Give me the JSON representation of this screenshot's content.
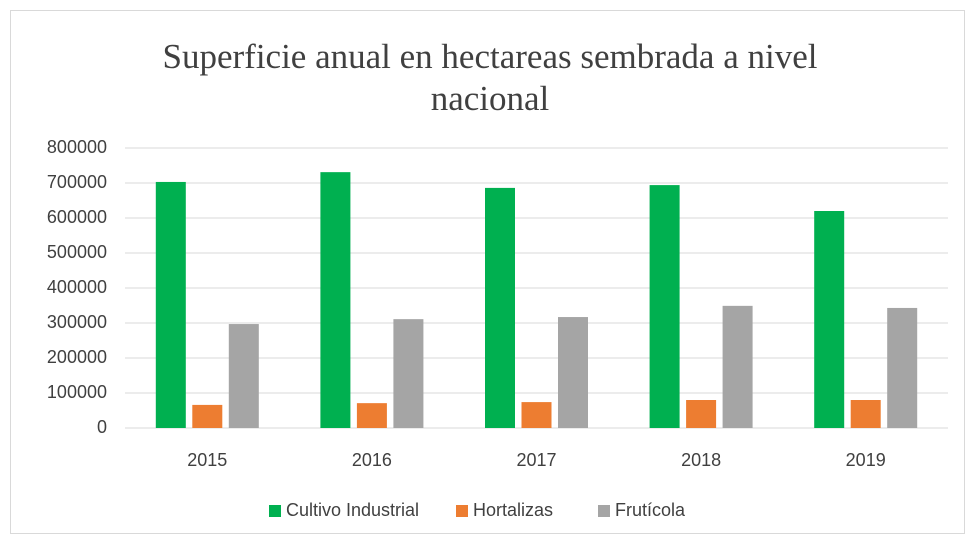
{
  "chart_data": {
    "type": "bar",
    "title": "Superficie anual en hectareas sembrada a nivel nacional",
    "categories": [
      "2015",
      "2016",
      "2017",
      "2018",
      "2019"
    ],
    "series": [
      {
        "name": "Cultivo Industrial",
        "color": "#00b050",
        "values": [
          703000,
          731000,
          686000,
          694000,
          620000
        ]
      },
      {
        "name": "Hortalizas",
        "color": "#ed7d31",
        "values": [
          66000,
          71000,
          74000,
          80000,
          80000
        ]
      },
      {
        "name": "Frutícola",
        "color": "#a5a5a5",
        "values": [
          297000,
          311000,
          317000,
          349000,
          343000
        ]
      }
    ],
    "ylim": [
      0,
      800000
    ],
    "yticks": [
      0,
      100000,
      200000,
      300000,
      400000,
      500000,
      600000,
      700000,
      800000
    ],
    "grid": true,
    "legend": "bottom"
  }
}
